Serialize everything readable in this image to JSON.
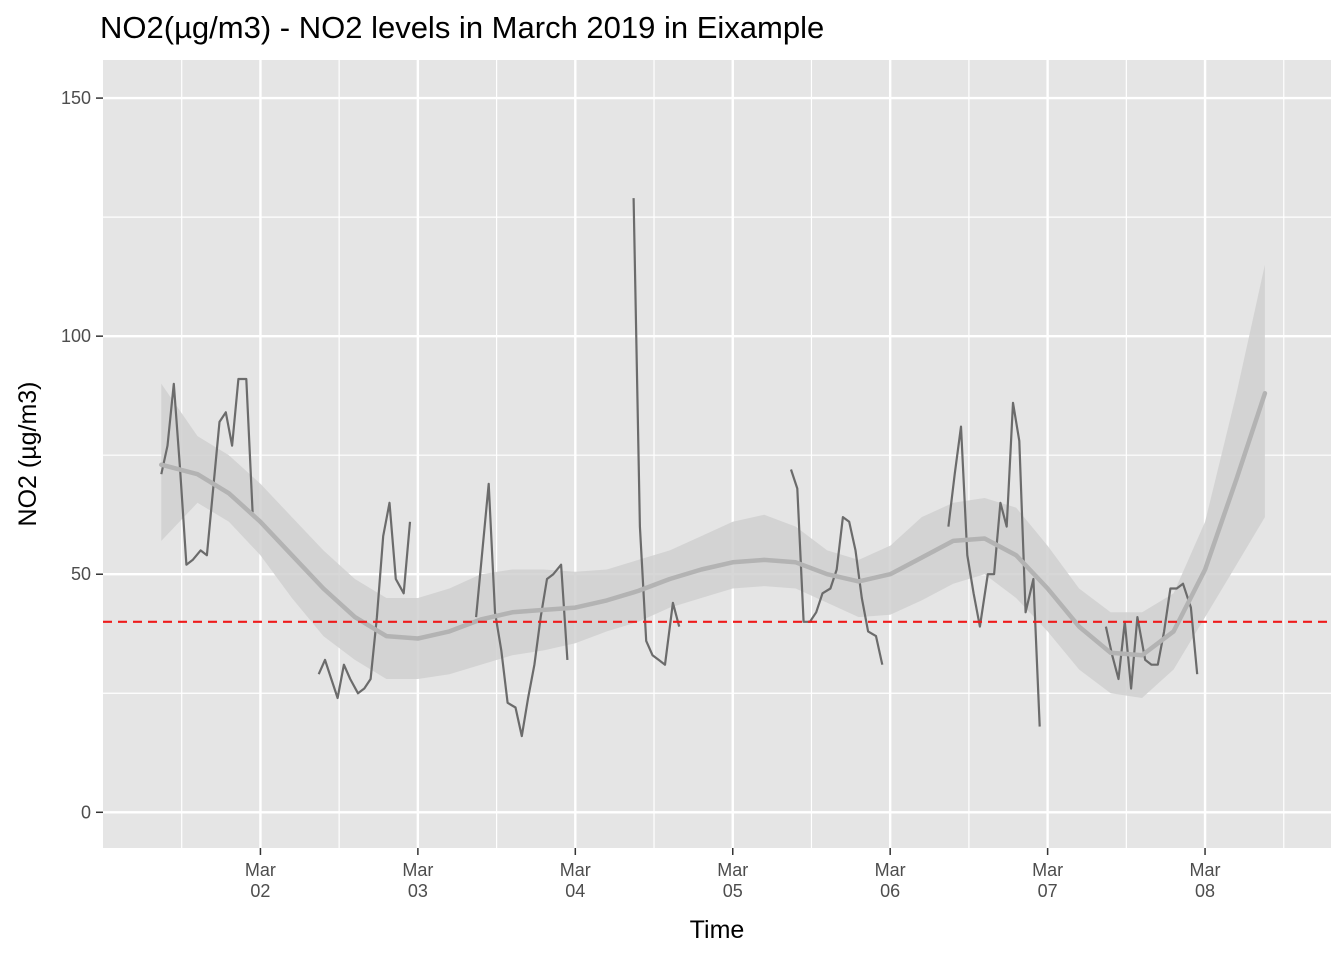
{
  "chart_data": {
    "type": "line",
    "title": "NO2(µg/m3) - NO2 levels in March 2019 in Eixample",
    "xlabel": "Time",
    "ylabel": "NO2 (µg/m3)",
    "ylim": [
      0,
      150
    ],
    "y_ticks": [
      0,
      50,
      100,
      150
    ],
    "x_ticks": [
      {
        "day": 2,
        "line1": "Mar",
        "line2": "02"
      },
      {
        "day": 3,
        "line1": "Mar",
        "line2": "03"
      },
      {
        "day": 4,
        "line1": "Mar",
        "line2": "04"
      },
      {
        "day": 5,
        "line1": "Mar",
        "line2": "05"
      },
      {
        "day": 6,
        "line1": "Mar",
        "line2": "06"
      },
      {
        "day": 7,
        "line1": "Mar",
        "line2": "07"
      },
      {
        "day": 8,
        "line1": "Mar",
        "line2": "08"
      }
    ],
    "xlim_days": [
      1.0,
      8.8
    ],
    "grid": true,
    "reference_line": {
      "y": 40,
      "color": "#ee1c1c",
      "style": "dashed"
    },
    "colors": {
      "series": "#6b6b6b",
      "smooth": "#b3b3b3",
      "band": "#d0d0d0",
      "panel": "#e5e5e5",
      "grid": "#ffffff"
    },
    "series": [
      {
        "segments": [
          [
            [
              1.37,
              71
            ],
            [
              1.41,
              77
            ],
            [
              1.45,
              90
            ],
            [
              1.49,
              72
            ],
            [
              1.53,
              52
            ],
            [
              1.57,
              53
            ],
            [
              1.62,
              55
            ],
            [
              1.66,
              54
            ],
            [
              1.7,
              68
            ],
            [
              1.74,
              82
            ],
            [
              1.78,
              84
            ],
            [
              1.82,
              77
            ],
            [
              1.86,
              91
            ],
            [
              1.91,
              91
            ],
            [
              1.95,
              63
            ]
          ],
          [
            [
              2.37,
              29
            ],
            [
              2.41,
              32
            ],
            [
              2.45,
              28
            ],
            [
              2.49,
              24
            ],
            [
              2.53,
              31
            ],
            [
              2.57,
              28
            ],
            [
              2.62,
              25
            ],
            [
              2.66,
              26
            ],
            [
              2.7,
              28
            ],
            [
              2.74,
              41
            ],
            [
              2.78,
              58
            ],
            [
              2.82,
              65
            ],
            [
              2.86,
              49
            ],
            [
              2.91,
              46
            ],
            [
              2.95,
              61
            ]
          ],
          [
            [
              3.37,
              41
            ],
            [
              3.41,
              55
            ],
            [
              3.45,
              69
            ],
            [
              3.49,
              42
            ],
            [
              3.53,
              34
            ],
            [
              3.57,
              23
            ],
            [
              3.62,
              22
            ],
            [
              3.66,
              16
            ],
            [
              3.7,
              24
            ],
            [
              3.74,
              31
            ],
            [
              3.78,
              41
            ],
            [
              3.82,
              49
            ],
            [
              3.86,
              50
            ],
            [
              3.91,
              52
            ],
            [
              3.95,
              32
            ]
          ],
          [
            [
              4.37,
              129
            ],
            [
              4.41,
              60
            ],
            [
              4.45,
              36
            ],
            [
              4.49,
              33
            ],
            [
              4.53,
              32
            ],
            [
              4.57,
              31
            ],
            [
              4.62,
              44
            ],
            [
              4.66,
              39
            ]
          ],
          [
            [
              5.37,
              72
            ],
            [
              5.41,
              68
            ],
            [
              5.45,
              40
            ],
            [
              5.49,
              40
            ],
            [
              5.53,
              42
            ],
            [
              5.57,
              46
            ],
            [
              5.62,
              47
            ],
            [
              5.66,
              51
            ],
            [
              5.7,
              62
            ],
            [
              5.74,
              61
            ],
            [
              5.78,
              55
            ],
            [
              5.82,
              45
            ],
            [
              5.86,
              38
            ],
            [
              5.91,
              37
            ],
            [
              5.95,
              31
            ]
          ],
          [
            [
              6.37,
              60
            ],
            [
              6.41,
              71
            ],
            [
              6.45,
              81
            ],
            [
              6.49,
              54
            ],
            [
              6.53,
              46
            ],
            [
              6.57,
              39
            ],
            [
              6.62,
              50
            ],
            [
              6.66,
              50
            ],
            [
              6.7,
              65
            ],
            [
              6.74,
              60
            ],
            [
              6.78,
              86
            ],
            [
              6.82,
              78
            ],
            [
              6.86,
              42
            ],
            [
              6.91,
              49
            ],
            [
              6.95,
              18
            ]
          ],
          [
            [
              7.37,
              39
            ],
            [
              7.41,
              33
            ],
            [
              7.45,
              28
            ],
            [
              7.49,
              40
            ],
            [
              7.53,
              26
            ],
            [
              7.57,
              41
            ],
            [
              7.62,
              32
            ],
            [
              7.66,
              31
            ],
            [
              7.7,
              31
            ],
            [
              7.74,
              38
            ],
            [
              7.78,
              47
            ],
            [
              7.82,
              47
            ],
            [
              7.86,
              48
            ],
            [
              7.91,
              43
            ],
            [
              7.95,
              29
            ]
          ]
        ]
      }
    ],
    "smooth": {
      "x": [
        1.37,
        1.6,
        1.8,
        2.0,
        2.2,
        2.4,
        2.6,
        2.8,
        3.0,
        3.2,
        3.4,
        3.6,
        3.8,
        4.0,
        4.2,
        4.4,
        4.6,
        4.8,
        5.0,
        5.2,
        5.4,
        5.6,
        5.8,
        6.0,
        6.2,
        6.4,
        6.6,
        6.8,
        7.0,
        7.2,
        7.4,
        7.6,
        7.8,
        8.0,
        8.2,
        8.38
      ],
      "y": [
        73,
        71,
        67,
        61,
        54,
        47,
        41,
        37,
        36.5,
        38,
        40.5,
        42,
        42.5,
        43,
        44.5,
        46.5,
        49,
        51,
        52.5,
        53,
        52.5,
        50,
        48.5,
        50,
        53.5,
        57,
        57.5,
        54,
        47,
        39,
        33.5,
        33,
        38,
        51,
        70,
        88
      ],
      "lower": [
        57,
        65,
        61,
        54,
        45,
        37,
        32,
        28,
        28,
        29,
        31,
        33,
        34,
        35.5,
        38,
        40,
        43,
        45,
        47,
        47.5,
        47,
        44,
        41,
        41.5,
        44.5,
        48,
        50,
        45,
        38,
        30,
        25,
        24,
        30,
        41,
        52,
        62
      ],
      "upper": [
        90,
        79,
        75,
        69,
        62,
        55,
        49,
        45,
        45,
        47,
        50,
        51,
        51,
        50.5,
        51,
        53,
        55,
        58,
        61,
        62.5,
        60,
        55,
        53,
        56,
        62,
        65,
        66,
        64,
        56,
        47,
        42,
        42,
        46,
        61,
        88,
        115
      ]
    }
  }
}
